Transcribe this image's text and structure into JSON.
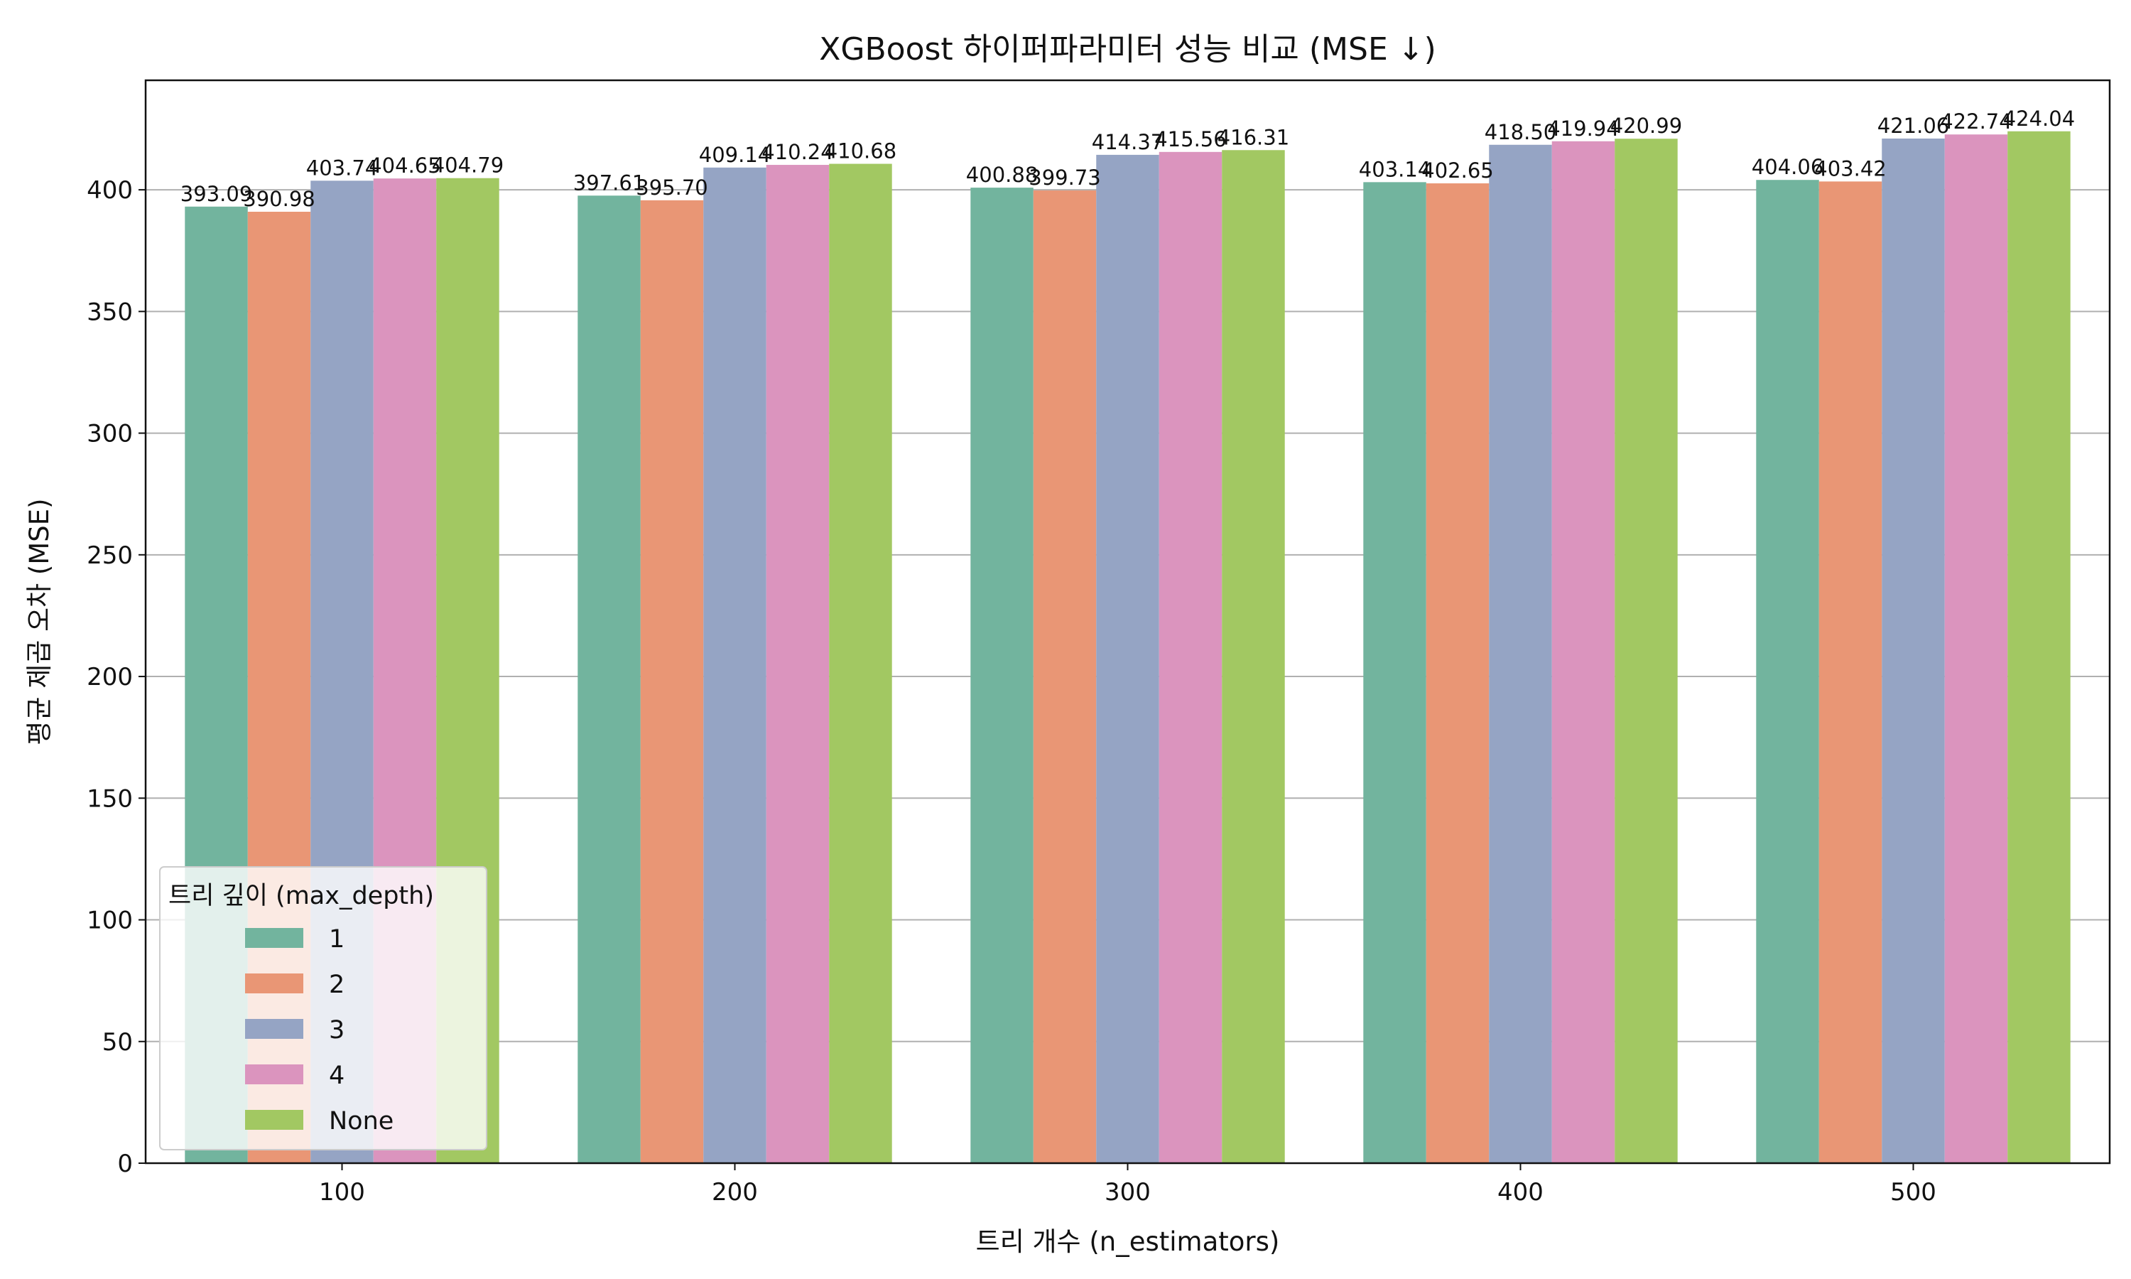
{
  "chart_data": {
    "type": "bar",
    "title": "XGBoost 하이퍼파라미터 성능 비교 (MSE ↓)",
    "xlabel": "트리 개수 (n_estimators)",
    "ylabel": "평균 제곱 오차 (MSE)",
    "categories": [
      "100",
      "200",
      "300",
      "400",
      "500"
    ],
    "ylim": [
      0,
      445
    ],
    "yticks": [
      0,
      50,
      100,
      150,
      200,
      250,
      300,
      350,
      400
    ],
    "grid": "horizontal",
    "legend": {
      "title": "트리 깊이 (max_depth)",
      "position": "lower-left"
    },
    "series": [
      {
        "name": "1",
        "color": "#72b49e",
        "values": [
          393.09,
          397.61,
          400.88,
          403.14,
          404.06
        ],
        "labels": [
          "393.09",
          "397.61",
          "400.88",
          "403.14",
          "404.06"
        ]
      },
      {
        "name": "2",
        "color": "#e99675",
        "values": [
          390.98,
          395.7,
          399.73,
          402.65,
          403.42
        ],
        "labels": [
          "390.98",
          "395.70",
          "399.73",
          "402.65",
          "403.42"
        ]
      },
      {
        "name": "3",
        "color": "#95a4c4",
        "values": [
          403.74,
          409.14,
          414.37,
          418.5,
          421.06
        ],
        "labels": [
          "403.74",
          "409.14",
          "414.37",
          "418.50",
          "421.06"
        ]
      },
      {
        "name": "4",
        "color": "#db94be",
        "values": [
          404.65,
          410.24,
          415.56,
          419.94,
          422.74
        ],
        "labels": [
          "404.65",
          "410.24",
          "415.56",
          "419.94",
          "422.74"
        ]
      },
      {
        "name": "None",
        "color": "#a2c862",
        "values": [
          404.79,
          410.68,
          416.31,
          420.99,
          424.04
        ],
        "labels": [
          "404.79",
          "410.68",
          "416.31",
          "420.99",
          "424.04"
        ]
      }
    ]
  }
}
